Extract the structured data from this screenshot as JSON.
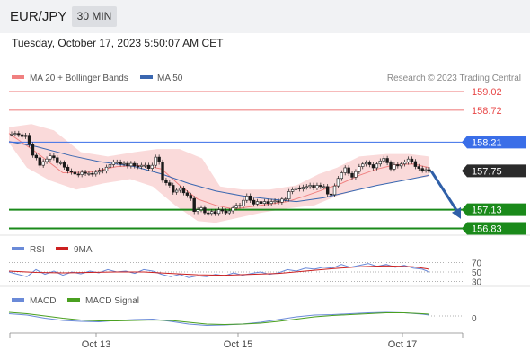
{
  "header": {
    "symbol": "EUR/JPY",
    "timeframe": "30 MIN",
    "datetime": "Tuesday, October 17, 2023 5:50:07 AM CET"
  },
  "legend": {
    "ma20": "MA 20 + Bollinger Bands",
    "ma50": "MA 50",
    "credit": "Research © 2023 Trading Central"
  },
  "colors": {
    "ma20": "#f08080",
    "bands": "#fadada",
    "ma50": "#3a67b0",
    "candle": "#1a1a1a",
    "resistance": "#e84848",
    "pivot": "#3a6ee8",
    "support": "#1a8a1a",
    "arrow": "#2f5fa8",
    "rsi": "#6a8ad8",
    "rsi_ma": "#cc2020",
    "macd": "#6a8ad8",
    "macd_signal": "#4aa020"
  },
  "chart_data": [
    {
      "type": "line",
      "title": "",
      "y_range": [
        156.78,
        159.12
      ],
      "x_ticks": [
        "Oct 13",
        "Oct 15",
        "Oct 17"
      ],
      "price_levels": [
        {
          "value": 159.02,
          "label": "159.02",
          "kind": "resistance"
        },
        {
          "value": 158.72,
          "label": "158.72",
          "kind": "resistance"
        },
        {
          "value": 158.21,
          "label": "158.21",
          "kind": "pivot"
        },
        {
          "value": 157.75,
          "label": "157.75",
          "kind": "last"
        },
        {
          "value": 157.13,
          "label": "157.13",
          "kind": "support"
        },
        {
          "value": 156.83,
          "label": "156.83",
          "kind": "support"
        }
      ],
      "close": [
        158.34,
        158.35,
        158.33,
        158.3,
        158.32,
        158.17,
        158.0,
        157.96,
        157.84,
        157.9,
        157.94,
        157.99,
        157.96,
        157.88,
        157.88,
        157.81,
        157.75,
        157.73,
        157.7,
        157.69,
        157.73,
        157.71,
        157.71,
        157.7,
        157.73,
        157.76,
        157.75,
        157.81,
        157.85,
        157.89,
        157.89,
        157.86,
        157.87,
        157.83,
        157.87,
        157.83,
        157.82,
        157.84,
        157.84,
        157.79,
        157.84,
        157.97,
        157.89,
        157.6,
        157.56,
        157.52,
        157.41,
        157.44,
        157.47,
        157.4,
        157.36,
        157.31,
        157.1,
        157.13,
        157.16,
        157.08,
        157.07,
        157.1,
        157.07,
        157.13,
        157.11,
        157.08,
        157.11,
        157.16,
        157.2,
        157.19,
        157.28,
        157.35,
        157.28,
        157.22,
        157.26,
        157.23,
        157.26,
        157.23,
        157.26,
        157.27,
        157.25,
        157.3,
        157.3,
        157.42,
        157.45,
        157.48,
        157.46,
        157.49,
        157.5,
        157.52,
        157.48,
        157.52,
        157.5,
        157.5,
        157.38,
        157.37,
        157.51,
        157.63,
        157.72,
        157.8,
        157.71,
        157.65,
        157.74,
        157.82,
        157.86,
        157.88,
        157.85,
        157.8,
        157.86,
        157.91,
        157.95,
        157.88,
        157.78,
        157.85,
        157.83,
        157.86,
        157.89,
        157.94,
        157.9,
        157.82,
        157.79,
        157.76,
        157.77,
        157.76
      ],
      "ma20_points": [
        [
          10,
          158.35
        ],
        [
          40,
          158.05
        ],
        [
          70,
          157.72
        ],
        [
          100,
          157.73
        ],
        [
          130,
          157.82
        ],
        [
          160,
          157.84
        ],
        [
          180,
          157.78
        ],
        [
          200,
          157.52
        ],
        [
          220,
          157.3
        ],
        [
          240,
          157.2
        ],
        [
          260,
          157.14
        ],
        [
          280,
          157.18
        ],
        [
          300,
          157.22
        ],
        [
          320,
          157.26
        ],
        [
          340,
          157.35
        ],
        [
          360,
          157.45
        ],
        [
          380,
          157.55
        ],
        [
          400,
          157.68
        ],
        [
          420,
          157.78
        ],
        [
          440,
          157.85
        ],
        [
          460,
          157.86
        ],
        [
          478,
          157.8
        ]
      ],
      "bands_upper_points": [
        [
          10,
          158.45
        ],
        [
          35,
          158.5
        ],
        [
          60,
          158.4
        ],
        [
          90,
          158.05
        ],
        [
          120,
          157.98
        ],
        [
          150,
          158.05
        ],
        [
          175,
          158.1
        ],
        [
          200,
          158.1
        ],
        [
          225,
          157.95
        ],
        [
          245,
          157.5
        ],
        [
          270,
          157.45
        ],
        [
          300,
          157.45
        ],
        [
          330,
          157.52
        ],
        [
          355,
          157.7
        ],
        [
          375,
          157.8
        ],
        [
          400,
          157.98
        ],
        [
          430,
          158.02
        ],
        [
          455,
          158.02
        ],
        [
          478,
          157.98
        ]
      ],
      "bands_lower_points": [
        [
          10,
          158.2
        ],
        [
          30,
          157.8
        ],
        [
          55,
          157.6
        ],
        [
          85,
          157.45
        ],
        [
          115,
          157.55
        ],
        [
          145,
          157.62
        ],
        [
          170,
          157.5
        ],
        [
          195,
          157.2
        ],
        [
          220,
          156.95
        ],
        [
          240,
          156.92
        ],
        [
          265,
          157.0
        ],
        [
          290,
          157.08
        ],
        [
          320,
          157.15
        ],
        [
          350,
          157.2
        ],
        [
          375,
          157.35
        ],
        [
          400,
          157.45
        ],
        [
          430,
          157.55
        ],
        [
          455,
          157.62
        ],
        [
          478,
          157.66
        ]
      ],
      "ma50_points": [
        [
          10,
          158.22
        ],
        [
          40,
          158.14
        ],
        [
          80,
          157.99
        ],
        [
          110,
          157.9
        ],
        [
          150,
          157.82
        ],
        [
          180,
          157.7
        ],
        [
          210,
          157.55
        ],
        [
          240,
          157.43
        ],
        [
          270,
          157.35
        ],
        [
          300,
          157.3
        ],
        [
          330,
          157.26
        ],
        [
          360,
          157.32
        ],
        [
          390,
          157.42
        ],
        [
          420,
          157.52
        ],
        [
          450,
          157.6
        ],
        [
          478,
          157.68
        ]
      ],
      "forecast_arrow": {
        "from": 157.75,
        "to": 157.04
      }
    },
    {
      "type": "line",
      "title": "",
      "series": [
        {
          "name": "RSI"
        },
        {
          "name": "9MA"
        }
      ],
      "levels": [
        70,
        50,
        30
      ],
      "rsi_points": [
        [
          10,
          50
        ],
        [
          20,
          45
        ],
        [
          30,
          40
        ],
        [
          40,
          55
        ],
        [
          50,
          45
        ],
        [
          60,
          52
        ],
        [
          70,
          43
        ],
        [
          80,
          50
        ],
        [
          90,
          46
        ],
        [
          100,
          52
        ],
        [
          110,
          48
        ],
        [
          120,
          55
        ],
        [
          130,
          50
        ],
        [
          140,
          52
        ],
        [
          150,
          47
        ],
        [
          160,
          55
        ],
        [
          170,
          52
        ],
        [
          180,
          45
        ],
        [
          190,
          40
        ],
        [
          200,
          45
        ],
        [
          210,
          38
        ],
        [
          220,
          42
        ],
        [
          230,
          40
        ],
        [
          240,
          45
        ],
        [
          250,
          42
        ],
        [
          260,
          48
        ],
        [
          270,
          43
        ],
        [
          280,
          47
        ],
        [
          290,
          50
        ],
        [
          300,
          45
        ],
        [
          310,
          48
        ],
        [
          320,
          55
        ],
        [
          330,
          52
        ],
        [
          340,
          58
        ],
        [
          350,
          56
        ],
        [
          360,
          60
        ],
        [
          370,
          58
        ],
        [
          380,
          66
        ],
        [
          390,
          60
        ],
        [
          400,
          64
        ],
        [
          410,
          68
        ],
        [
          420,
          62
        ],
        [
          430,
          66
        ],
        [
          440,
          60
        ],
        [
          450,
          64
        ],
        [
          460,
          58
        ],
        [
          470,
          56
        ],
        [
          478,
          50
        ]
      ],
      "rsi_ma_points": [
        [
          10,
          52
        ],
        [
          40,
          49
        ],
        [
          70,
          48
        ],
        [
          100,
          49
        ],
        [
          130,
          50
        ],
        [
          160,
          50
        ],
        [
          190,
          47
        ],
        [
          220,
          44
        ],
        [
          250,
          43
        ],
        [
          280,
          45
        ],
        [
          310,
          47
        ],
        [
          340,
          52
        ],
        [
          370,
          57
        ],
        [
          400,
          61
        ],
        [
          430,
          63
        ],
        [
          460,
          61
        ],
        [
          478,
          56
        ]
      ]
    },
    {
      "type": "line",
      "title": "",
      "series": [
        {
          "name": "MACD"
        },
        {
          "name": "MACD Signal"
        }
      ],
      "levels": [
        0
      ],
      "macd_points": [
        [
          10,
          0.05
        ],
        [
          30,
          0.02
        ],
        [
          50,
          -0.05
        ],
        [
          70,
          -0.1
        ],
        [
          90,
          -0.12
        ],
        [
          110,
          -0.13
        ],
        [
          130,
          -0.1
        ],
        [
          150,
          -0.08
        ],
        [
          170,
          -0.07
        ],
        [
          190,
          -0.12
        ],
        [
          210,
          -0.18
        ],
        [
          230,
          -0.21
        ],
        [
          250,
          -0.2
        ],
        [
          270,
          -0.18
        ],
        [
          290,
          -0.14
        ],
        [
          310,
          -0.08
        ],
        [
          330,
          -0.02
        ],
        [
          350,
          0.02
        ],
        [
          370,
          0.03
        ],
        [
          390,
          0.05
        ],
        [
          410,
          0.07
        ],
        [
          430,
          0.08
        ],
        [
          450,
          0.07
        ],
        [
          470,
          0.04
        ],
        [
          478,
          0.02
        ]
      ],
      "signal_points": [
        [
          10,
          0.08
        ],
        [
          30,
          0.05
        ],
        [
          50,
          0.0
        ],
        [
          70,
          -0.05
        ],
        [
          90,
          -0.09
        ],
        [
          110,
          -0.11
        ],
        [
          130,
          -0.11
        ],
        [
          150,
          -0.1
        ],
        [
          170,
          -0.09
        ],
        [
          190,
          -0.1
        ],
        [
          210,
          -0.14
        ],
        [
          230,
          -0.18
        ],
        [
          250,
          -0.19
        ],
        [
          270,
          -0.18
        ],
        [
          290,
          -0.16
        ],
        [
          310,
          -0.12
        ],
        [
          330,
          -0.07
        ],
        [
          350,
          -0.02
        ],
        [
          370,
          0.01
        ],
        [
          390,
          0.03
        ],
        [
          410,
          0.05
        ],
        [
          430,
          0.07
        ],
        [
          450,
          0.07
        ],
        [
          470,
          0.05
        ],
        [
          478,
          0.04
        ]
      ]
    }
  ]
}
